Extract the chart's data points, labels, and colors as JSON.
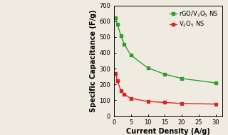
{
  "rgo_x": [
    0.5,
    1,
    2,
    3,
    5,
    10,
    15,
    20,
    30
  ],
  "rgo_y": [
    620,
    580,
    510,
    455,
    385,
    305,
    265,
    238,
    210
  ],
  "v2o5_x": [
    0.5,
    1,
    2,
    3,
    5,
    10,
    15,
    20,
    30
  ],
  "v2o5_y": [
    268,
    225,
    162,
    138,
    112,
    93,
    86,
    80,
    76
  ],
  "rgo_color": "#2ca02c",
  "v2o5_color": "#d62728",
  "xlabel": "Current Density (A/g)",
  "ylabel": "Specific Capacitance (F/g)",
  "rgo_label": "rGO/V$_2$O$_5$ NS",
  "v2o5_label": "V$_2$O$_5$ NS",
  "xlim": [
    0,
    32
  ],
  "ylim": [
    0,
    700
  ],
  "xticks": [
    0,
    5,
    10,
    15,
    20,
    25,
    30
  ],
  "yticks": [
    0,
    100,
    200,
    300,
    400,
    500,
    600,
    700
  ],
  "bg_color": "#f0ebe0",
  "plot_bg_color": "#f0ebe0",
  "axis_fontsize": 7,
  "legend_fontsize": 6,
  "tick_fontsize": 6
}
